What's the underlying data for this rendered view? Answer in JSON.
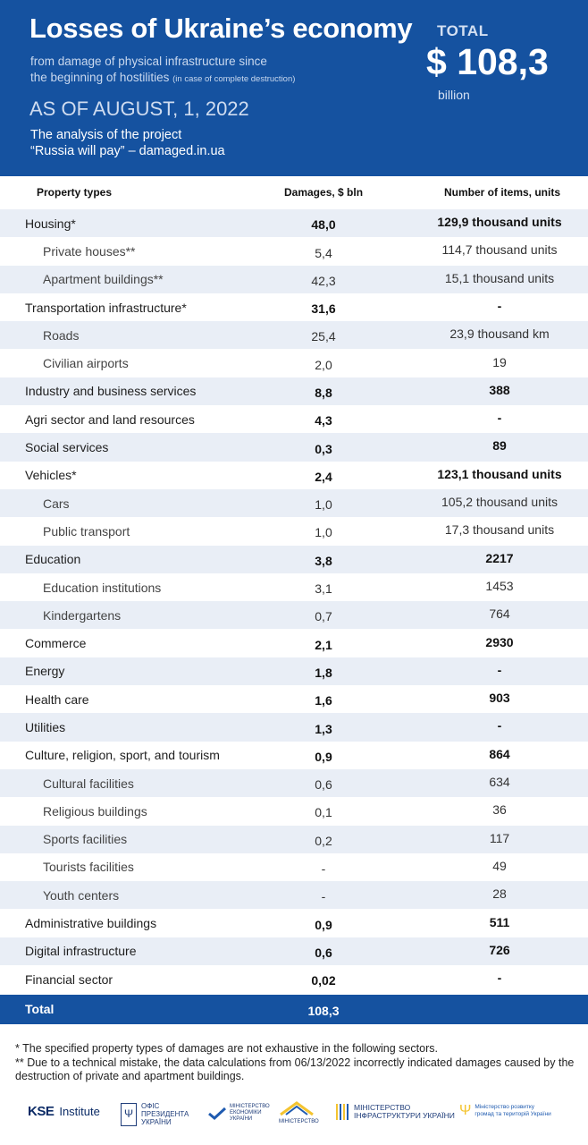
{
  "header": {
    "title": "Losses of Ukraine’s economy",
    "subtitle_line1": "from damage of physical infrastructure since",
    "subtitle_line2": "the beginning of hostilities",
    "subtitle_note": "(in case of complete destruction)",
    "as_of": "AS OF AUGUST, 1, 2022",
    "analysis_line1": "The analysis of the project",
    "analysis_line2": "“Russia will pay” – damaged.in.ua",
    "total_label": "TOTAL",
    "total_value": "$ 108,3",
    "total_unit": "billion"
  },
  "chart_data": {
    "type": "table",
    "columns": [
      "Property types",
      "Damages, $ bln",
      "Number of items, units"
    ],
    "rows": [
      {
        "type": "Housing*",
        "damages": "48,0",
        "items": "129,9 thousand units",
        "level": "main",
        "shade": true
      },
      {
        "type": "Private houses**",
        "damages": "5,4",
        "items": "114,7 thousand units",
        "level": "sub",
        "shade": false
      },
      {
        "type": "Apartment buildings**",
        "damages": "42,3",
        "items": "15,1 thousand units",
        "level": "sub",
        "shade": true
      },
      {
        "type": "Transportation infrastructure*",
        "damages": "31,6",
        "items": "-",
        "level": "main",
        "shade": false
      },
      {
        "type": "Roads",
        "damages": "25,4",
        "items": "23,9 thousand km",
        "level": "sub",
        "shade": true
      },
      {
        "type": "Civilian airports",
        "damages": "2,0",
        "items": "19",
        "level": "sub",
        "shade": false
      },
      {
        "type": "Industry and business services",
        "damages": "8,8",
        "items": "388",
        "level": "main",
        "shade": true
      },
      {
        "type": "Agri sector and land resources",
        "damages": "4,3",
        "items": "-",
        "level": "main",
        "shade": false
      },
      {
        "type": "Social services",
        "damages": "0,3",
        "items": "89",
        "level": "main",
        "shade": true
      },
      {
        "type": "Vehicles*",
        "damages": "2,4",
        "items": "123,1 thousand units",
        "level": "main",
        "shade": false
      },
      {
        "type": "Cars",
        "damages": "1,0",
        "items": "105,2 thousand units",
        "level": "sub",
        "shade": true
      },
      {
        "type": "Public transport",
        "damages": "1,0",
        "items": "17,3 thousand units",
        "level": "sub",
        "shade": false
      },
      {
        "type": "Education",
        "damages": "3,8",
        "items": "2217",
        "level": "main",
        "shade": true
      },
      {
        "type": "Education institutions",
        "damages": "3,1",
        "items": "1453",
        "level": "sub",
        "shade": false
      },
      {
        "type": "Kindergartens",
        "damages": "0,7",
        "items": "764",
        "level": "sub",
        "shade": true
      },
      {
        "type": "Commerce",
        "damages": "2,1",
        "items": "2930",
        "level": "main",
        "shade": false
      },
      {
        "type": "Energy",
        "damages": "1,8",
        "items": "-",
        "level": "main",
        "shade": true
      },
      {
        "type": "Health care",
        "damages": "1,6",
        "items": "903",
        "level": "main",
        "shade": false
      },
      {
        "type": "Utilities",
        "damages": "1,3",
        "items": "-",
        "level": "main",
        "shade": true
      },
      {
        "type": "Culture, religion, sport, and tourism",
        "damages": "0,9",
        "items": "864",
        "level": "main",
        "shade": false
      },
      {
        "type": "Cultural facilities",
        "damages": "0,6",
        "items": "634",
        "level": "sub",
        "shade": true
      },
      {
        "type": "Religious buildings",
        "damages": "0,1",
        "items": "36",
        "level": "sub",
        "shade": false
      },
      {
        "type": "Sports facilities",
        "damages": "0,2",
        "items": "117",
        "level": "sub",
        "shade": true
      },
      {
        "type": "Tourists facilities",
        "damages": "-",
        "items": "49",
        "level": "sub",
        "shade": false
      },
      {
        "type": "Youth centers",
        "damages": "-",
        "items": "28",
        "level": "sub",
        "shade": true
      },
      {
        "type": "Administrative buildings",
        "damages": "0,9",
        "items": "511",
        "level": "main",
        "shade": false
      },
      {
        "type": "Digital infrastructure",
        "damages": "0,6",
        "items": "726",
        "level": "main",
        "shade": true
      },
      {
        "type": "Financial sector",
        "damages": "0,02",
        "items": "-",
        "level": "main",
        "shade": false
      }
    ],
    "total": {
      "label": "Total",
      "damages": "108,3"
    },
    "colors": {
      "header_bg": "#1552a0",
      "row_shade": "#e9eef6"
    }
  },
  "footnotes": {
    "note1": "* The specified property types of damages are not exhaustive in the following sectors.",
    "note2": "** Due to a technical mistake, the data calculations from 06/13/2022 incorrectly indicated damages caused by the destruction of private and apartment buildings."
  },
  "logos": {
    "kse_abbr": "KSE",
    "kse_word": "Institute",
    "op_line1": "ОФІС",
    "op_line2": "ПРЕЗИДЕНТА",
    "op_line3": "УКРАЇНИ",
    "mineco_line1": "МІНІСТЕРСТВО",
    "mineco_line2": "ЕКОНОМІКИ",
    "mineco_line3": "УКРАЇНИ",
    "minstr_line1": "МІНІСТЕРСТВО",
    "mininfra_line1": "МІНІСТЕРСТВО",
    "mininfra_line2": "ІНФРАСТРУКТУРИ УКРАЇНИ",
    "minreg_line1": "Міністерство розвитку",
    "minreg_line2": "громад та територій України"
  }
}
